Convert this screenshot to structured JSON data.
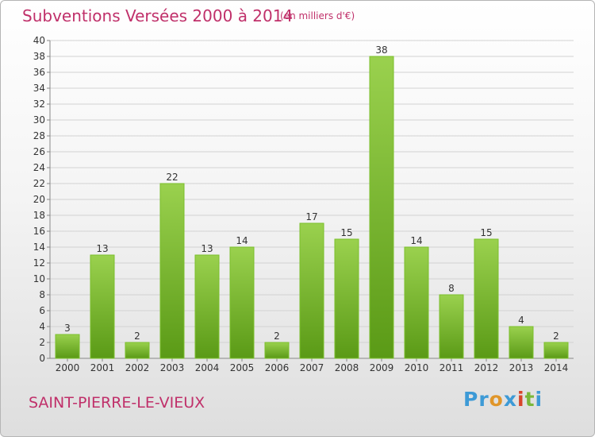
{
  "title": "Subventions Versées 2000 à 2014",
  "subtitle": "(en milliers d'€)",
  "commune": "SAINT-PIERRE-LE-VIEUX",
  "logo": {
    "p1": "Pr",
    "p2": "o",
    "p3": "x",
    "p4": "i",
    "p5": "t",
    "p6": "i"
  },
  "colors": {
    "title": "#c0306a",
    "bar_light": "#9ad14e",
    "bar_dark": "#5a9a16",
    "grid": "#d2d2d2"
  },
  "chart_data": {
    "type": "bar",
    "title": "Subventions Versées 2000 à 2014",
    "subtitle": "(en milliers d'€)",
    "categories": [
      "2000",
      "2001",
      "2002",
      "2003",
      "2004",
      "2005",
      "2006",
      "2007",
      "2008",
      "2009",
      "2010",
      "2011",
      "2012",
      "2013",
      "2014"
    ],
    "values": [
      3,
      13,
      2,
      22,
      13,
      14,
      2,
      17,
      15,
      38,
      14,
      8,
      15,
      4,
      2
    ],
    "ylim": [
      0,
      40
    ],
    "yticks": [
      0,
      2,
      4,
      6,
      8,
      10,
      12,
      14,
      16,
      18,
      20,
      22,
      24,
      26,
      28,
      30,
      32,
      34,
      36,
      38,
      40
    ],
    "grid": true
  }
}
